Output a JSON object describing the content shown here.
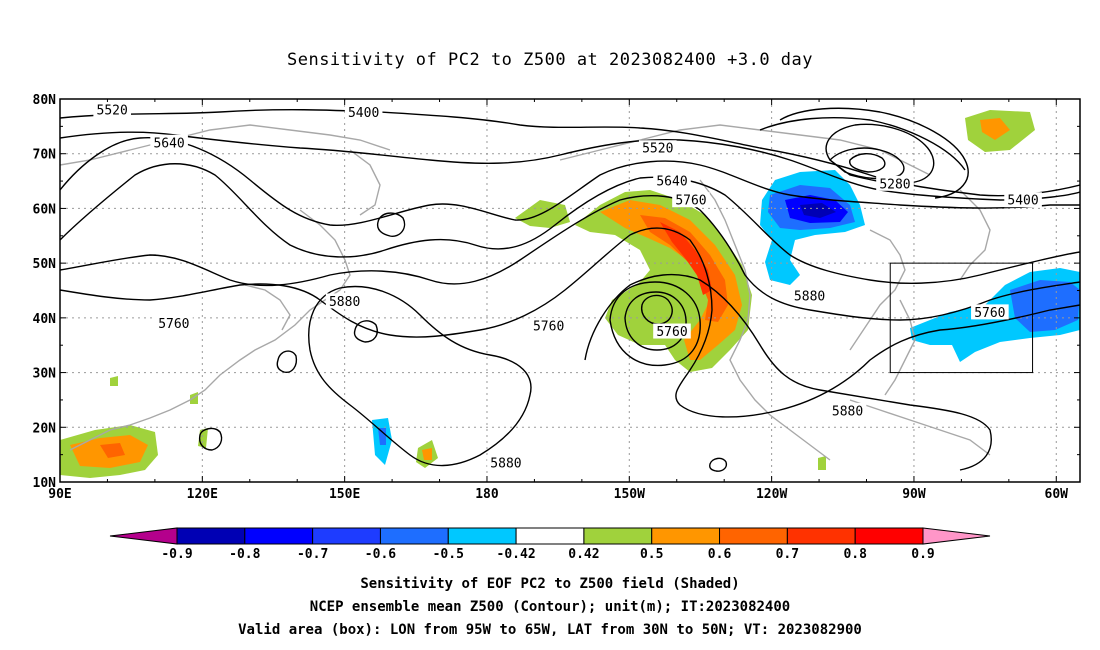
{
  "title": "Sensitivity of PC2 to Z500 at 2023082400 +3.0 day",
  "map": {
    "lon_range": [
      90,
      305
    ],
    "lat_range": [
      10,
      80
    ],
    "lat_labels": [
      "10N",
      "20N",
      "30N",
      "40N",
      "50N",
      "60N",
      "70N",
      "80N"
    ],
    "lon_labels": [
      "90E",
      "120E",
      "150E",
      "180",
      "150W",
      "120W",
      "90W",
      "60W"
    ],
    "contour_labels": [
      {
        "text": "5520",
        "lon": 101,
        "lat": 78
      },
      {
        "text": "5400",
        "lon": 154,
        "lat": 77.5
      },
      {
        "text": "5640",
        "lon": 113,
        "lat": 72
      },
      {
        "text": "5520",
        "lon": 216,
        "lat": 71
      },
      {
        "text": "5640",
        "lon": 219,
        "lat": 65
      },
      {
        "text": "5280",
        "lon": 266,
        "lat": 64.5
      },
      {
        "text": "5400",
        "lon": 293,
        "lat": 61.5
      },
      {
        "text": "5760",
        "lon": 223,
        "lat": 61.5
      },
      {
        "text": "5880",
        "lon": 150,
        "lat": 43
      },
      {
        "text": "5880",
        "lon": 248,
        "lat": 44
      },
      {
        "text": "5760",
        "lon": 114,
        "lat": 39
      },
      {
        "text": "5760",
        "lon": 193,
        "lat": 38.5
      },
      {
        "text": "5760",
        "lon": 219,
        "lat": 37.5
      },
      {
        "text": "5760",
        "lon": 286,
        "lat": 41
      },
      {
        "text": "5880",
        "lon": 256,
        "lat": 23
      },
      {
        "text": "5880",
        "lon": 184,
        "lat": 13.5
      }
    ],
    "valid_box": {
      "lon": [
        265,
        295
      ],
      "lat": [
        30,
        50
      ]
    }
  },
  "colorbar": {
    "labels": [
      "-0.9",
      "-0.8",
      "-0.7",
      "-0.6",
      "-0.5",
      "-0.42",
      "0.42",
      "0.5",
      "0.6",
      "0.7",
      "0.8",
      "0.9"
    ],
    "colors": [
      "#b4008c",
      "#0000b4",
      "#0000ff",
      "#1e3cff",
      "#1e6eff",
      "#00c8ff",
      "#ffffff",
      "#a0d23c",
      "#ff9600",
      "#ff6400",
      "#ff3200",
      "#ff0000",
      "#ff96c8"
    ]
  },
  "captions": {
    "line1": "Sensitivity of EOF PC2 to Z500 field (Shaded)",
    "line2": "NCEP ensemble mean Z500 (Contour); unit(m); IT:2023082400",
    "line3": "Valid area (box): LON from 95W to 65W, LAT from 30N to 50N; VT: 2023082900"
  }
}
